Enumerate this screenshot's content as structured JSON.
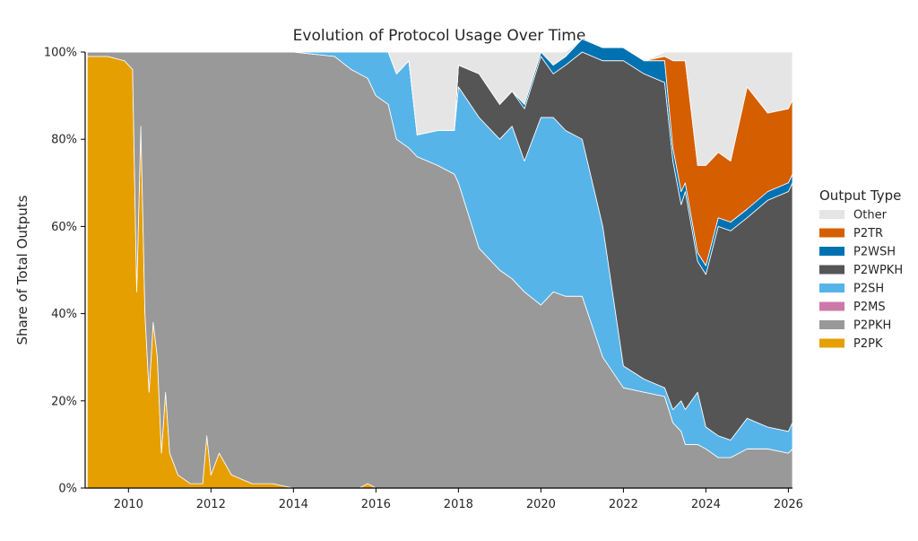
{
  "chart_data": {
    "type": "area",
    "stacked": true,
    "normalized": true,
    "title": "Evolution of Protocol Usage Over Time",
    "xlabel": "",
    "ylabel": "Share of Total Outputs",
    "xlim": [
      2008.95,
      2026.1
    ],
    "ylim": [
      0,
      100
    ],
    "x_ticks": [
      2010,
      2012,
      2014,
      2016,
      2018,
      2020,
      2022,
      2024,
      2026
    ],
    "x_tick_labels": [
      "2010",
      "2012",
      "2014",
      "2016",
      "2018",
      "2020",
      "2022",
      "2024",
      "2026"
    ],
    "y_ticks": [
      0,
      20,
      40,
      60,
      80,
      100
    ],
    "y_tick_labels": [
      "0%",
      "20%",
      "40%",
      "60%",
      "80%",
      "100%"
    ],
    "legend": {
      "title": "Output Type",
      "position": "right",
      "order": [
        "Other",
        "P2TR",
        "P2WSH",
        "P2WPKH",
        "P2SH",
        "P2MS",
        "P2PKH",
        "P2PK"
      ]
    },
    "x": [
      2009.0,
      2009.5,
      2009.9,
      2010.1,
      2010.2,
      2010.3,
      2010.4,
      2010.5,
      2010.6,
      2010.7,
      2010.8,
      2010.9,
      2011.0,
      2011.2,
      2011.5,
      2011.8,
      2011.9,
      2012.0,
      2012.2,
      2012.5,
      2013.0,
      2013.5,
      2014.0,
      2015.0,
      2015.4,
      2015.6,
      2015.8,
      2016.0,
      2016.3,
      2016.5,
      2016.8,
      2017.0,
      2017.5,
      2017.9,
      2018.0,
      2018.5,
      2019.0,
      2019.3,
      2019.6,
      2020.0,
      2020.3,
      2020.6,
      2021.0,
      2021.5,
      2022.0,
      2022.5,
      2023.0,
      2023.2,
      2023.4,
      2023.5,
      2023.8,
      2024.0,
      2024.3,
      2024.6,
      2025.0,
      2025.5,
      2026.0,
      2026.1
    ],
    "series": [
      {
        "name": "P2PK",
        "color": "#E69F00",
        "values": [
          99,
          99,
          98,
          96,
          45,
          83,
          40,
          22,
          38,
          30,
          8,
          22,
          8,
          3,
          1,
          1,
          12,
          3,
          8,
          3,
          1,
          1,
          0,
          0,
          0,
          0,
          1,
          0,
          0,
          0,
          0,
          0,
          0,
          0,
          0,
          0,
          0,
          0,
          0,
          0,
          0,
          0,
          0,
          0,
          0,
          0,
          0,
          0,
          0,
          0,
          0,
          0,
          0,
          0,
          0,
          0,
          0,
          0
        ]
      },
      {
        "name": "P2PKH",
        "color": "#999999",
        "values": [
          1,
          1,
          2,
          4,
          55,
          17,
          60,
          78,
          62,
          70,
          92,
          78,
          92,
          97,
          99,
          99,
          88,
          97,
          92,
          97,
          99,
          99,
          100,
          99,
          96,
          95,
          93,
          90,
          88,
          80,
          78,
          76,
          74,
          72,
          70,
          55,
          50,
          48,
          45,
          42,
          45,
          44,
          44,
          30,
          23,
          22,
          21,
          15,
          13,
          10,
          10,
          9,
          7,
          7,
          9,
          9,
          8,
          9
        ]
      },
      {
        "name": "P2MS",
        "color": "#CC79A7",
        "values": [
          0,
          0,
          0,
          0,
          0,
          0,
          0,
          0,
          0,
          0,
          0,
          0,
          0,
          0,
          0,
          0,
          0,
          0,
          0,
          0,
          0,
          0,
          0,
          0,
          0,
          0,
          0,
          0,
          0,
          0,
          0,
          0,
          0,
          0,
          0,
          0,
          0,
          0,
          0,
          0,
          0,
          0,
          0,
          0,
          0,
          0,
          0,
          0,
          0,
          0,
          0,
          0,
          0,
          0,
          0,
          0,
          0,
          0
        ]
      },
      {
        "name": "P2SH",
        "color": "#56B4E9",
        "values": [
          0,
          0,
          0,
          0,
          0,
          0,
          0,
          0,
          0,
          0,
          0,
          0,
          0,
          0,
          0,
          0,
          0,
          0,
          0,
          0,
          0,
          0,
          0,
          1,
          4,
          5,
          6,
          10,
          12,
          15,
          20,
          5,
          8,
          10,
          22,
          30,
          30,
          35,
          30,
          43,
          40,
          38,
          36,
          30,
          5,
          3,
          2,
          3,
          7,
          8,
          12,
          5,
          5,
          4,
          7,
          5,
          5,
          6
        ]
      },
      {
        "name": "P2WPKH",
        "color": "#555555",
        "values": [
          0,
          0,
          0,
          0,
          0,
          0,
          0,
          0,
          0,
          0,
          0,
          0,
          0,
          0,
          0,
          0,
          0,
          0,
          0,
          0,
          0,
          0,
          0,
          0,
          0,
          0,
          0,
          0,
          0,
          0,
          0,
          0,
          0,
          0,
          5,
          10,
          8,
          8,
          12,
          14,
          10,
          15,
          20,
          38,
          70,
          70,
          70,
          57,
          45,
          50,
          30,
          35,
          48,
          48,
          46,
          52,
          55,
          55
        ]
      },
      {
        "name": "P2WSH",
        "color": "#0072B2",
        "values": [
          0,
          0,
          0,
          0,
          0,
          0,
          0,
          0,
          0,
          0,
          0,
          0,
          0,
          0,
          0,
          0,
          0,
          0,
          0,
          0,
          0,
          0,
          0,
          0,
          0,
          0,
          0,
          0,
          0,
          0,
          0,
          0,
          0,
          0,
          0,
          0,
          0,
          0,
          1,
          1,
          2,
          2,
          3,
          3,
          3,
          3,
          5,
          3,
          3,
          2,
          2,
          2,
          2,
          2,
          2,
          2,
          2,
          2
        ]
      },
      {
        "name": "P2TR",
        "color": "#D55E00",
        "values": [
          0,
          0,
          0,
          0,
          0,
          0,
          0,
          0,
          0,
          0,
          0,
          0,
          0,
          0,
          0,
          0,
          0,
          0,
          0,
          0,
          0,
          0,
          0,
          0,
          0,
          0,
          0,
          0,
          0,
          0,
          0,
          0,
          0,
          0,
          0,
          0,
          0,
          0,
          0,
          0,
          0,
          0,
          0,
          0,
          0,
          0,
          1,
          20,
          30,
          28,
          20,
          23,
          15,
          14,
          28,
          18,
          17,
          17
        ]
      },
      {
        "name": "Other",
        "color": "#E5E5E5",
        "values": [
          0,
          0,
          0,
          0,
          0,
          0,
          0,
          0,
          0,
          0,
          0,
          0,
          0,
          0,
          0,
          0,
          0,
          0,
          0,
          0,
          0,
          0,
          0,
          0,
          0,
          0,
          0,
          0,
          0,
          5,
          2,
          19,
          18,
          18,
          3,
          5,
          12,
          9,
          12,
          0,
          3,
          1,
          0,
          0,
          0,
          0,
          1,
          2,
          2,
          2,
          26,
          26,
          23,
          25,
          8,
          14,
          13,
          11
        ]
      }
    ]
  }
}
